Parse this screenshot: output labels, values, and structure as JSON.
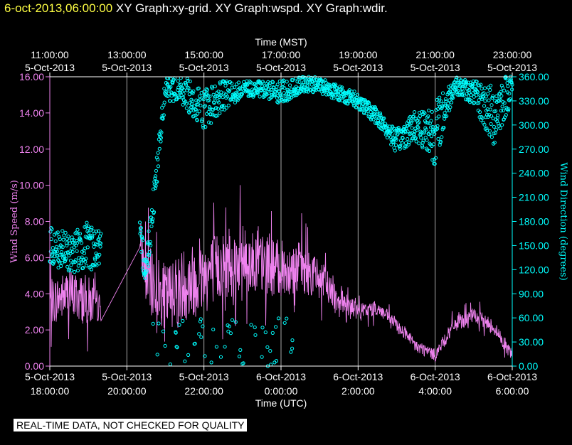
{
  "header": {
    "datetime": "6-oct-2013,06:00:00",
    "captions": [
      "XY Graph:xy-grid.",
      "XY Graph:wspd.",
      "XY Graph:wdir."
    ]
  },
  "footer": {
    "notice": "REAL-TIME DATA, NOT CHECKED FOR QUALITY"
  },
  "colors": {
    "speed": "#ee82ee",
    "direction": "#00ffff",
    "axis_white": "#ffffff",
    "background": "#000000",
    "header_date": "#ffff44"
  },
  "chart_data": {
    "type": "line",
    "title": "",
    "top_axis": {
      "label": "Time (MST)",
      "ticks": [
        {
          "time": "11:00:00",
          "date": "5-Oct-2013"
        },
        {
          "time": "13:00:00",
          "date": "5-Oct-2013"
        },
        {
          "time": "15:00:00",
          "date": "5-Oct-2013"
        },
        {
          "time": "17:00:00",
          "date": "5-Oct-2013"
        },
        {
          "time": "19:00:00",
          "date": "5-Oct-2013"
        },
        {
          "time": "21:00:00",
          "date": "5-Oct-2013"
        },
        {
          "time": "23:00:00",
          "date": "5-Oct-2013"
        }
      ]
    },
    "bottom_axis": {
      "label": "Time (UTC)",
      "ticks": [
        {
          "date": "5-Oct-2013",
          "time": "18:00:00"
        },
        {
          "date": "5-Oct-2013",
          "time": "20:00:00"
        },
        {
          "date": "5-Oct-2013",
          "time": "22:00:00"
        },
        {
          "date": "6-Oct-2013",
          "time": "0:00:00"
        },
        {
          "date": "6-Oct-2013",
          "time": "2:00:00"
        },
        {
          "date": "6-Oct-2013",
          "time": "4:00:00"
        },
        {
          "date": "6-Oct-2013",
          "time": "6:00:00"
        }
      ]
    },
    "xlim_utc": [
      "2013-10-05 18:00",
      "2013-10-06 06:00"
    ],
    "left_axis": {
      "label": "Wind Speed (m/s)",
      "range": [
        0,
        16
      ],
      "ticks": [
        "0.00",
        "2.00",
        "4.00",
        "6.00",
        "8.00",
        "10.00",
        "12.00",
        "14.00",
        "16.00"
      ]
    },
    "right_axis": {
      "label": "Wind Direction (degrees)",
      "range": [
        0,
        360
      ],
      "ticks": [
        "0.00",
        "30.00",
        "60.00",
        "90.00",
        "120.00",
        "150.00",
        "180.00",
        "210.00",
        "240.00",
        "270.00",
        "300.00",
        "330.00",
        "360.00"
      ]
    },
    "grid": "vertical lines at major time ticks",
    "series": [
      {
        "name": "Wind Speed (m/s)",
        "axis": "left",
        "style": "line",
        "time_utc": [
          "2013-10-05 18:00",
          "2013-10-05 18:30",
          "2013-10-05 19:00",
          "2013-10-05 19:20",
          "2013-10-05 20:20",
          "2013-10-05 20:30",
          "2013-10-05 21:00",
          "2013-10-05 21:30",
          "2013-10-05 22:00",
          "2013-10-05 22:30",
          "2013-10-05 23:00",
          "2013-10-05 23:30",
          "2013-10-06 00:00",
          "2013-10-06 00:30",
          "2013-10-06 01:00",
          "2013-10-06 01:30",
          "2013-10-06 02:00",
          "2013-10-06 02:30",
          "2013-10-06 03:00",
          "2013-10-06 03:30",
          "2013-10-06 04:00",
          "2013-10-06 04:30",
          "2013-10-06 05:00",
          "2013-10-06 05:30",
          "2013-10-06 06:00"
        ],
        "mean": [
          3.5,
          4.0,
          3.6,
          3.2,
          6.8,
          5.0,
          3.8,
          4.6,
          5.0,
          5.6,
          5.9,
          5.6,
          5.4,
          5.5,
          4.8,
          3.8,
          3.0,
          3.2,
          2.3,
          1.1,
          0.6,
          2.3,
          2.8,
          2.2,
          0.6
        ],
        "spread": [
          1.8,
          2.0,
          2.0,
          1.0,
          0.8,
          2.5,
          2.6,
          3.0,
          3.0,
          2.8,
          2.6,
          2.4,
          2.2,
          2.0,
          1.6,
          1.2,
          0.6,
          0.6,
          0.5,
          0.5,
          0.5,
          0.6,
          0.6,
          0.6,
          0.5
        ]
      },
      {
        "name": "Wind Direction (degrees)",
        "axis": "right",
        "style": "markers",
        "time_utc": [
          "2013-10-05 18:00",
          "2013-10-05 18:30",
          "2013-10-05 19:00",
          "2013-10-05 19:20",
          "2013-10-05 20:20",
          "2013-10-05 20:30",
          "2013-10-05 21:00",
          "2013-10-05 21:30",
          "2013-10-05 22:00",
          "2013-10-05 22:30",
          "2013-10-05 23:00",
          "2013-10-05 23:30",
          "2013-10-06 00:00",
          "2013-10-06 00:30",
          "2013-10-06 01:00",
          "2013-10-06 01:30",
          "2013-10-06 02:00",
          "2013-10-06 02:30",
          "2013-10-06 03:00",
          "2013-10-06 03:30",
          "2013-10-06 04:00",
          "2013-10-06 04:30",
          "2013-10-06 05:00",
          "2013-10-06 05:30",
          "2013-10-06 06:00"
        ],
        "mean": [
          150,
          140,
          150,
          145,
          160,
          120,
          345,
          340,
          320,
          335,
          345,
          345,
          340,
          350,
          350,
          340,
          330,
          310,
          280,
          300,
          290,
          350,
          340,
          310,
          350
        ],
        "spread": [
          25,
          25,
          30,
          25,
          20,
          25,
          15,
          20,
          25,
          20,
          10,
          10,
          15,
          10,
          10,
          10,
          10,
          10,
          15,
          20,
          40,
          10,
          15,
          40,
          20
        ]
      }
    ]
  }
}
